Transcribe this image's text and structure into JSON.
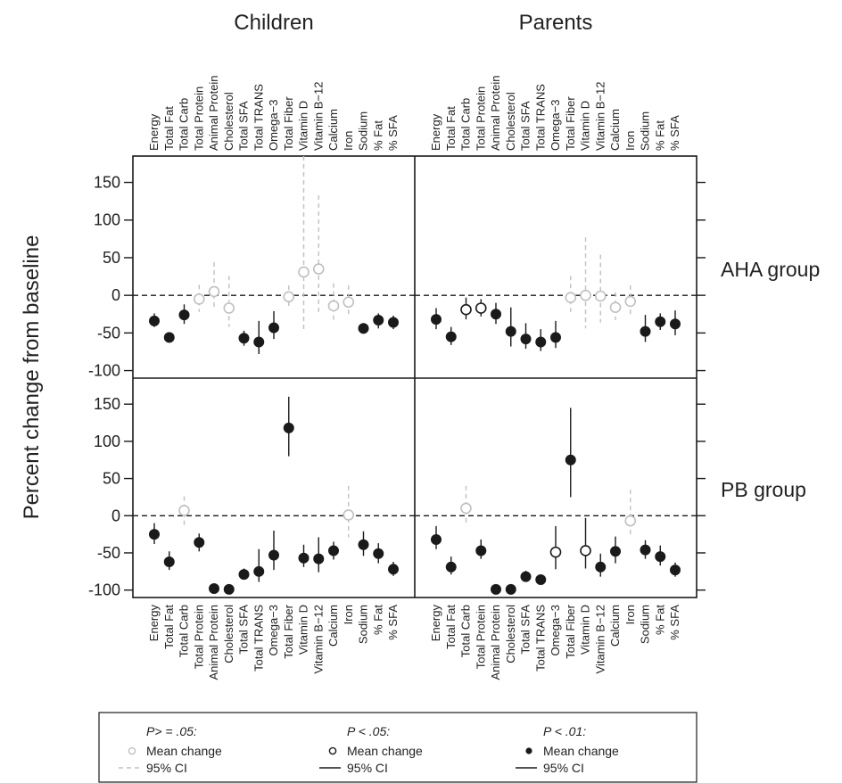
{
  "chart_data": {
    "type": "scatter",
    "ylabel": "Percent change from baseline",
    "columns": [
      "Children",
      "Parents"
    ],
    "rows": [
      "AHA group",
      "PB group"
    ],
    "ylim": [
      -110,
      185
    ],
    "yticks": [
      -100,
      -50,
      0,
      50,
      100,
      150
    ],
    "reference_line": 0,
    "categories": [
      "Energy",
      "Total Fat",
      "Total Carb",
      "Total Protein",
      "Animal Protein",
      "Cholesterol",
      "Total SFA",
      "Total TRANS",
      "Omega−3",
      "Total Fiber",
      "Vitamin D",
      "Vitamin B−12",
      "Calcium",
      "Iron",
      "Sodium",
      "% Fat",
      "% SFA"
    ],
    "panels": [
      {
        "column": "Children",
        "row": "AHA group",
        "points": [
          {
            "category": "Energy",
            "mean": -34,
            "lo": -42,
            "hi": -24,
            "sig": "p01"
          },
          {
            "category": "Total Fat",
            "mean": -56,
            "lo": -62,
            "hi": -49,
            "sig": "p01"
          },
          {
            "category": "Total Carb",
            "mean": -26,
            "lo": -38,
            "hi": -12,
            "sig": "p01"
          },
          {
            "category": "Total Protein",
            "mean": -5,
            "lo": -22,
            "hi": 14,
            "sig": "ns"
          },
          {
            "category": "Animal Protein",
            "mean": 5,
            "lo": -18,
            "hi": 44,
            "sig": "ns"
          },
          {
            "category": "Cholesterol",
            "mean": -17,
            "lo": -42,
            "hi": 26,
            "sig": "ns"
          },
          {
            "category": "Total SFA",
            "mean": -57,
            "lo": -67,
            "hi": -47,
            "sig": "p01"
          },
          {
            "category": "Total TRANS",
            "mean": -62,
            "lo": -78,
            "hi": -34,
            "sig": "p01"
          },
          {
            "category": "Omega−3",
            "mean": -43,
            "lo": -58,
            "hi": -21,
            "sig": "p01"
          },
          {
            "category": "Total Fiber",
            "mean": -2,
            "lo": -14,
            "hi": 13,
            "sig": "ns"
          },
          {
            "category": "Vitamin D",
            "mean": 31,
            "lo": -46,
            "hi": 188,
            "sig": "ns"
          },
          {
            "category": "Vitamin B−12",
            "mean": 35,
            "lo": -22,
            "hi": 133,
            "sig": "ns"
          },
          {
            "category": "Calcium",
            "mean": -14,
            "lo": -37,
            "hi": 16,
            "sig": "ns"
          },
          {
            "category": "Iron",
            "mean": -9,
            "lo": -27,
            "hi": 13,
            "sig": "ns"
          },
          {
            "category": "Sodium",
            "mean": -44,
            "lo": -51,
            "hi": -37,
            "sig": "p01"
          },
          {
            "category": "% Fat",
            "mean": -33,
            "lo": -44,
            "hi": -24,
            "sig": "p01"
          },
          {
            "category": "% SFA",
            "mean": -36,
            "lo": -45,
            "hi": -27,
            "sig": "p01"
          }
        ]
      },
      {
        "column": "Parents",
        "row": "AHA group",
        "points": [
          {
            "category": "Energy",
            "mean": -32,
            "lo": -45,
            "hi": -17,
            "sig": "p01"
          },
          {
            "category": "Total Fat",
            "mean": -55,
            "lo": -66,
            "hi": -42,
            "sig": "p01"
          },
          {
            "category": "Total Carb",
            "mean": -19,
            "lo": -32,
            "hi": -3,
            "sig": "p05"
          },
          {
            "category": "Total Protein",
            "mean": -17,
            "lo": -28,
            "hi": -5,
            "sig": "p05"
          },
          {
            "category": "Animal Protein",
            "mean": -25,
            "lo": -38,
            "hi": -10,
            "sig": "p01"
          },
          {
            "category": "Cholesterol",
            "mean": -48,
            "lo": -68,
            "hi": -16,
            "sig": "p01"
          },
          {
            "category": "Total SFA",
            "mean": -58,
            "lo": -71,
            "hi": -37,
            "sig": "p01"
          },
          {
            "category": "Total TRANS",
            "mean": -62,
            "lo": -74,
            "hi": -45,
            "sig": "p01"
          },
          {
            "category": "Omega−3",
            "mean": -56,
            "lo": -70,
            "hi": -34,
            "sig": "p01"
          },
          {
            "category": "Total Fiber",
            "mean": -3,
            "lo": -22,
            "hi": 26,
            "sig": "ns"
          },
          {
            "category": "Vitamin D",
            "mean": 0,
            "lo": -44,
            "hi": 77,
            "sig": "ns"
          },
          {
            "category": "Vitamin B−12",
            "mean": -1,
            "lo": -36,
            "hi": 54,
            "sig": "ns"
          },
          {
            "category": "Calcium",
            "mean": -16,
            "lo": -33,
            "hi": 4,
            "sig": "ns"
          },
          {
            "category": "Iron",
            "mean": -8,
            "lo": -26,
            "hi": 13,
            "sig": "ns"
          },
          {
            "category": "Sodium",
            "mean": -48,
            "lo": -62,
            "hi": -26,
            "sig": "p01"
          },
          {
            "category": "% Fat",
            "mean": -35,
            "lo": -46,
            "hi": -24,
            "sig": "p01"
          },
          {
            "category": "% SFA",
            "mean": -38,
            "lo": -53,
            "hi": -20,
            "sig": "p01"
          }
        ]
      },
      {
        "column": "Children",
        "row": "PB group",
        "points": [
          {
            "category": "Energy",
            "mean": -25,
            "lo": -38,
            "hi": -10,
            "sig": "p01"
          },
          {
            "category": "Total Fat",
            "mean": -62,
            "lo": -73,
            "hi": -48,
            "sig": "p01"
          },
          {
            "category": "Total Carb",
            "mean": 7,
            "lo": -13,
            "hi": 26,
            "sig": "ns"
          },
          {
            "category": "Total Protein",
            "mean": -36,
            "lo": -48,
            "hi": -24,
            "sig": "p01"
          },
          {
            "category": "Animal Protein",
            "mean": -98,
            "lo": -99,
            "hi": -96,
            "sig": "p01"
          },
          {
            "category": "Cholesterol",
            "mean": -99,
            "lo": -100,
            "hi": -98,
            "sig": "p01"
          },
          {
            "category": "Total SFA",
            "mean": -79,
            "lo": -86,
            "hi": -71,
            "sig": "p01"
          },
          {
            "category": "Total TRANS",
            "mean": -75,
            "lo": -89,
            "hi": -45,
            "sig": "p01"
          },
          {
            "category": "Omega−3",
            "mean": -53,
            "lo": -73,
            "hi": -20,
            "sig": "p01"
          },
          {
            "category": "Total Fiber",
            "mean": 118,
            "lo": 80,
            "hi": 160,
            "sig": "p01"
          },
          {
            "category": "Vitamin D",
            "mean": -57,
            "lo": -69,
            "hi": -39,
            "sig": "p01"
          },
          {
            "category": "Vitamin B−12",
            "mean": -58,
            "lo": -76,
            "hi": -29,
            "sig": "p01"
          },
          {
            "category": "Calcium",
            "mean": -47,
            "lo": -59,
            "hi": -35,
            "sig": "p01"
          },
          {
            "category": "Iron",
            "mean": 1,
            "lo": -29,
            "hi": 40,
            "sig": "ns"
          },
          {
            "category": "Sodium",
            "mean": -39,
            "lo": -54,
            "hi": -21,
            "sig": "p01"
          },
          {
            "category": "% Fat",
            "mean": -51,
            "lo": -64,
            "hi": -37,
            "sig": "p01"
          },
          {
            "category": "% SFA",
            "mean": -72,
            "lo": -81,
            "hi": -62,
            "sig": "p01"
          }
        ]
      },
      {
        "column": "Parents",
        "row": "PB group",
        "points": [
          {
            "category": "Energy",
            "mean": -32,
            "lo": -45,
            "hi": -14,
            "sig": "p01"
          },
          {
            "category": "Total Fat",
            "mean": -69,
            "lo": -79,
            "hi": -55,
            "sig": "p01"
          },
          {
            "category": "Total Carb",
            "mean": 10,
            "lo": -14,
            "hi": 40,
            "sig": "ns"
          },
          {
            "category": "Total Protein",
            "mean": -47,
            "lo": -58,
            "hi": -32,
            "sig": "p01"
          },
          {
            "category": "Animal Protein",
            "mean": -99,
            "lo": -100,
            "hi": -97,
            "sig": "p01"
          },
          {
            "category": "Cholesterol",
            "mean": -99,
            "lo": -100,
            "hi": -98,
            "sig": "p01"
          },
          {
            "category": "Total SFA",
            "mean": -82,
            "lo": -89,
            "hi": -74,
            "sig": "p01"
          },
          {
            "category": "Total TRANS",
            "mean": -86,
            "lo": -92,
            "hi": -79,
            "sig": "p01"
          },
          {
            "category": "Omega−3",
            "mean": -49,
            "lo": -72,
            "hi": -14,
            "sig": "p05"
          },
          {
            "category": "Total Fiber",
            "mean": 75,
            "lo": 25,
            "hi": 145,
            "sig": "p01"
          },
          {
            "category": "Vitamin D",
            "mean": -47,
            "lo": -71,
            "hi": -3,
            "sig": "p05"
          },
          {
            "category": "Vitamin B−12",
            "mean": -69,
            "lo": -82,
            "hi": -51,
            "sig": "p01"
          },
          {
            "category": "Calcium",
            "mean": -48,
            "lo": -64,
            "hi": -28,
            "sig": "p01"
          },
          {
            "category": "Iron",
            "mean": -7,
            "lo": -30,
            "hi": 35,
            "sig": "ns"
          },
          {
            "category": "Sodium",
            "mean": -46,
            "lo": -58,
            "hi": -33,
            "sig": "p01"
          },
          {
            "category": "% Fat",
            "mean": -55,
            "lo": -67,
            "hi": -40,
            "sig": "p01"
          },
          {
            "category": "% SFA",
            "mean": -73,
            "lo": -82,
            "hi": -63,
            "sig": "p01"
          }
        ]
      }
    ],
    "legend": {
      "position": "bottom",
      "items": [
        {
          "key": "ns",
          "heading": "P> = .05:",
          "marker_label": "Mean change",
          "line_label": "95% CI",
          "marker": "open-circle",
          "color": "#c0c0c0",
          "line": "dashed"
        },
        {
          "key": "p05",
          "heading": "P < .05:",
          "marker_label": "Mean change",
          "line_label": "95% CI",
          "marker": "open-circle",
          "color": "#1a1a1a",
          "line": "solid"
        },
        {
          "key": "p01",
          "heading": "P < .01:",
          "marker_label": "Mean change",
          "line_label": "95% CI",
          "marker": "filled-circle",
          "color": "#1a1a1a",
          "line": "solid"
        }
      ]
    }
  }
}
